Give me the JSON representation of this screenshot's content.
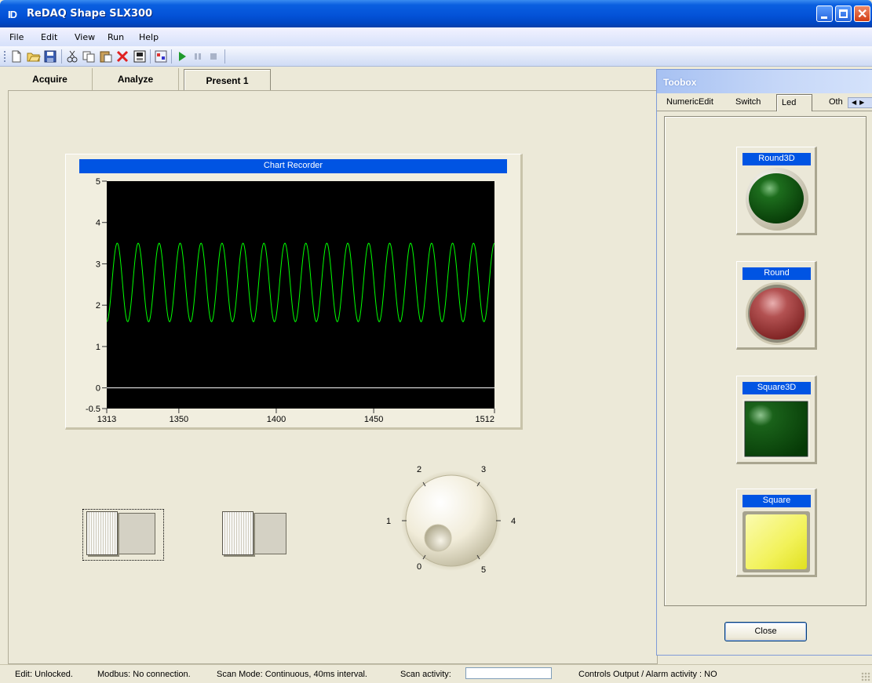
{
  "window": {
    "logo_text": "ID",
    "title": "ReDAQ Shape SLX300"
  },
  "menu": {
    "items": [
      "File",
      "Edit",
      "View",
      "Run",
      "Help"
    ]
  },
  "toolbar": {
    "icons": [
      "new-file-icon",
      "open-folder-icon",
      "save-icon",
      "cut-icon",
      "copy-icon",
      "paste-icon",
      "delete-icon",
      "print-icon",
      "chart-icon",
      "run-icon",
      "pause-icon",
      "stop-icon"
    ]
  },
  "tabs": [
    "Acquire",
    "Analyze",
    "Present 1"
  ],
  "active_tab": "Present 1",
  "chart_data": {
    "type": "line",
    "title": "Chart Recorder",
    "x_ticks": [
      1313,
      1350,
      1400,
      1450,
      1512
    ],
    "y_ticks": [
      5,
      4,
      3,
      2,
      1,
      0,
      -0.5
    ],
    "xlim": [
      1313,
      1512
    ],
    "ylim": [
      -0.5,
      5
    ],
    "series": [
      {
        "color": "#00ff00",
        "waveform": "sine",
        "cycles": 18.5,
        "min": 1.6,
        "max": 3.5
      },
      {
        "color": "#ffffff",
        "constant": 0
      }
    ],
    "background": "#000000"
  },
  "knob": {
    "labels": [
      "0",
      "1",
      "2",
      "3",
      "4",
      "5"
    ]
  },
  "toolbox": {
    "title": "Toobox",
    "tabs": [
      "NumericEdit",
      "Switch",
      "Led",
      "Oth"
    ],
    "active_tab": "Led",
    "leds": [
      {
        "label": "Round3D",
        "color": "#0d5a0d"
      },
      {
        "label": "Round",
        "color": "#b04848"
      },
      {
        "label": "Square3D",
        "color": "#0d5a0d"
      },
      {
        "label": "Square",
        "color": "#f2f25a"
      }
    ],
    "close_label": "Close"
  },
  "status": {
    "edit": "Edit: Unlocked.",
    "modbus": "Modbus: No connection.",
    "scan_mode": "Scan Mode: Continuous, 40ms interval.",
    "scan_activity": "Scan activity:",
    "controls": "Controls Output / Alarm activity :  NO"
  },
  "colors": {
    "title_bar": "#0453d8",
    "accent_label": "#0054e3",
    "trace": "#00ff00"
  }
}
